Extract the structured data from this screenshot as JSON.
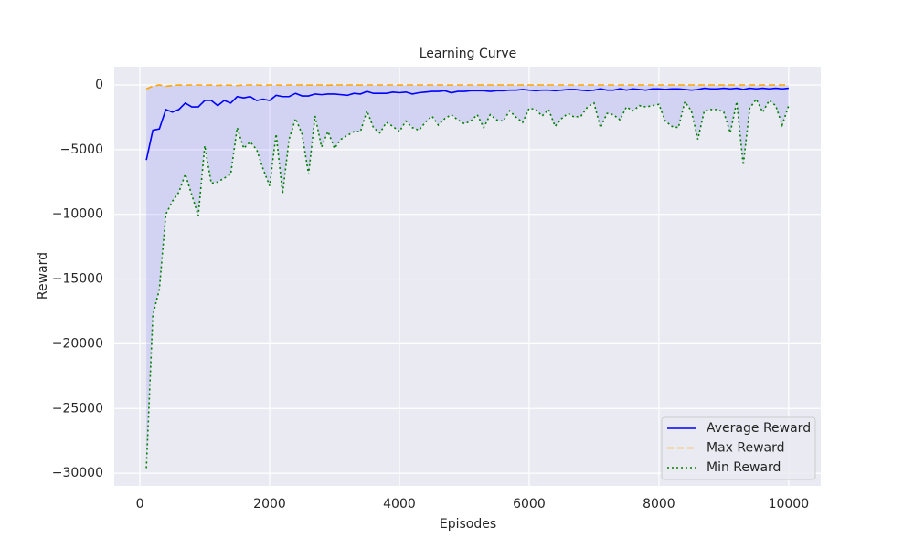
{
  "chart_data": {
    "type": "line",
    "title": "Learning Curve",
    "x_label": "Episodes",
    "y_label": "Reward",
    "x": [
      100,
      200,
      300,
      400,
      500,
      600,
      700,
      800,
      900,
      1000,
      1100,
      1200,
      1300,
      1400,
      1500,
      1600,
      1700,
      1800,
      1900,
      2000,
      2100,
      2200,
      2300,
      2400,
      2500,
      2600,
      2700,
      2800,
      2900,
      3000,
      3100,
      3200,
      3300,
      3400,
      3500,
      3600,
      3700,
      3800,
      3900,
      4000,
      4100,
      4200,
      4300,
      4400,
      4500,
      4600,
      4700,
      4800,
      4900,
      5000,
      5100,
      5200,
      5300,
      5400,
      5500,
      5600,
      5700,
      5800,
      5900,
      6000,
      6100,
      6200,
      6300,
      6400,
      6500,
      6600,
      6700,
      6800,
      6900,
      7000,
      7100,
      7200,
      7300,
      7400,
      7500,
      7600,
      7700,
      7800,
      7900,
      8000,
      8100,
      8200,
      8300,
      8400,
      8500,
      8600,
      8700,
      8800,
      8900,
      9000,
      9100,
      9200,
      9300,
      9400,
      9500,
      9600,
      9700,
      9800,
      9900,
      10000
    ],
    "series": [
      {
        "name": "Average Reward",
        "color": "#0000ff",
        "style": "solid",
        "values": [
          -5800,
          -3500,
          -3400,
          -1900,
          -2100,
          -1900,
          -1400,
          -1700,
          -1700,
          -1200,
          -1200,
          -1600,
          -1200,
          -1400,
          -900,
          -1000,
          -900,
          -1200,
          -1100,
          -1200,
          -800,
          -900,
          -900,
          -650,
          -850,
          -850,
          -700,
          -750,
          -700,
          -700,
          -750,
          -800,
          -650,
          -700,
          -500,
          -650,
          -650,
          -650,
          -550,
          -600,
          -550,
          -700,
          -600,
          -550,
          -500,
          -500,
          -450,
          -600,
          -500,
          -500,
          -450,
          -450,
          -450,
          -500,
          -450,
          -450,
          -400,
          -400,
          -350,
          -400,
          -450,
          -400,
          -400,
          -450,
          -400,
          -350,
          -350,
          -400,
          -450,
          -400,
          -300,
          -400,
          -400,
          -300,
          -400,
          -300,
          -350,
          -400,
          -300,
          -300,
          -350,
          -300,
          -300,
          -350,
          -400,
          -350,
          -250,
          -300,
          -300,
          -250,
          -300,
          -250,
          -350,
          -250,
          -300,
          -250,
          -300,
          -250,
          -300,
          -250
        ]
      },
      {
        "name": "Max Reward",
        "color": "#ffa500",
        "style": "dashed",
        "values": [
          -300,
          -100,
          0,
          -100,
          -50,
          0,
          -20,
          0,
          0,
          -30,
          0,
          -40,
          0,
          -20,
          -50,
          0,
          0,
          0,
          -30,
          0,
          0,
          -20,
          0,
          0,
          0,
          -10,
          0,
          0,
          -20,
          0,
          0,
          0,
          0,
          -10,
          0,
          0,
          0,
          0,
          0,
          -10,
          0,
          0,
          0,
          0,
          0,
          0,
          0,
          -10,
          0,
          0,
          0,
          0,
          0,
          0,
          0,
          0,
          0,
          0,
          0,
          0,
          0,
          0,
          0,
          0,
          0,
          0,
          0,
          0,
          0,
          0,
          0,
          0,
          0,
          0,
          0,
          0,
          0,
          0,
          0,
          0,
          0,
          0,
          0,
          0,
          0,
          0,
          0,
          0,
          0,
          0,
          0,
          0,
          0,
          0,
          0,
          0,
          0,
          0,
          0,
          0
        ]
      },
      {
        "name": "Min Reward",
        "color": "#008000",
        "style": "dotted",
        "values": [
          -29600,
          -17800,
          -15800,
          -10000,
          -9000,
          -8300,
          -6900,
          -8500,
          -10100,
          -4700,
          -7600,
          -7500,
          -7200,
          -6900,
          -3300,
          -4900,
          -4400,
          -5000,
          -6500,
          -7800,
          -3800,
          -8400,
          -4200,
          -2600,
          -3800,
          -6900,
          -2400,
          -4800,
          -3600,
          -4900,
          -4200,
          -3900,
          -3600,
          -3600,
          -2000,
          -3300,
          -3700,
          -2900,
          -3200,
          -3600,
          -2800,
          -3300,
          -3500,
          -2900,
          -2400,
          -3100,
          -2600,
          -2300,
          -2700,
          -3000,
          -2800,
          -2300,
          -3300,
          -2300,
          -2700,
          -2800,
          -2000,
          -2500,
          -2900,
          -1800,
          -1900,
          -2400,
          -1900,
          -3200,
          -2600,
          -2200,
          -2500,
          -2400,
          -1700,
          -1400,
          -3300,
          -2200,
          -2300,
          -2700,
          -1700,
          -2000,
          -1600,
          -1700,
          -1600,
          -1500,
          -2800,
          -3200,
          -3300,
          -1300,
          -2000,
          -4200,
          -2000,
          -1900,
          -1900,
          -2100,
          -3700,
          -1300,
          -6200,
          -1800,
          -1100,
          -2100,
          -1200,
          -1600,
          -3100,
          -1600
        ]
      }
    ],
    "band_color": "#0000ff",
    "xlim": [
      -395,
      10495
    ],
    "ylim": [
      -30980,
      1411
    ],
    "xticks": [
      0,
      2000,
      4000,
      6000,
      8000,
      10000
    ],
    "yticks": [
      0,
      {
        "value": -5000,
        "label": "−5000"
      },
      {
        "value": -10000,
        "label": "−10000"
      },
      {
        "value": -15000,
        "label": "−15000"
      },
      {
        "value": -20000,
        "label": "−20000"
      },
      {
        "value": -25000,
        "label": "−25000"
      },
      {
        "value": -30000,
        "label": "−30000"
      }
    ],
    "grid": true,
    "legend": "lower right"
  }
}
